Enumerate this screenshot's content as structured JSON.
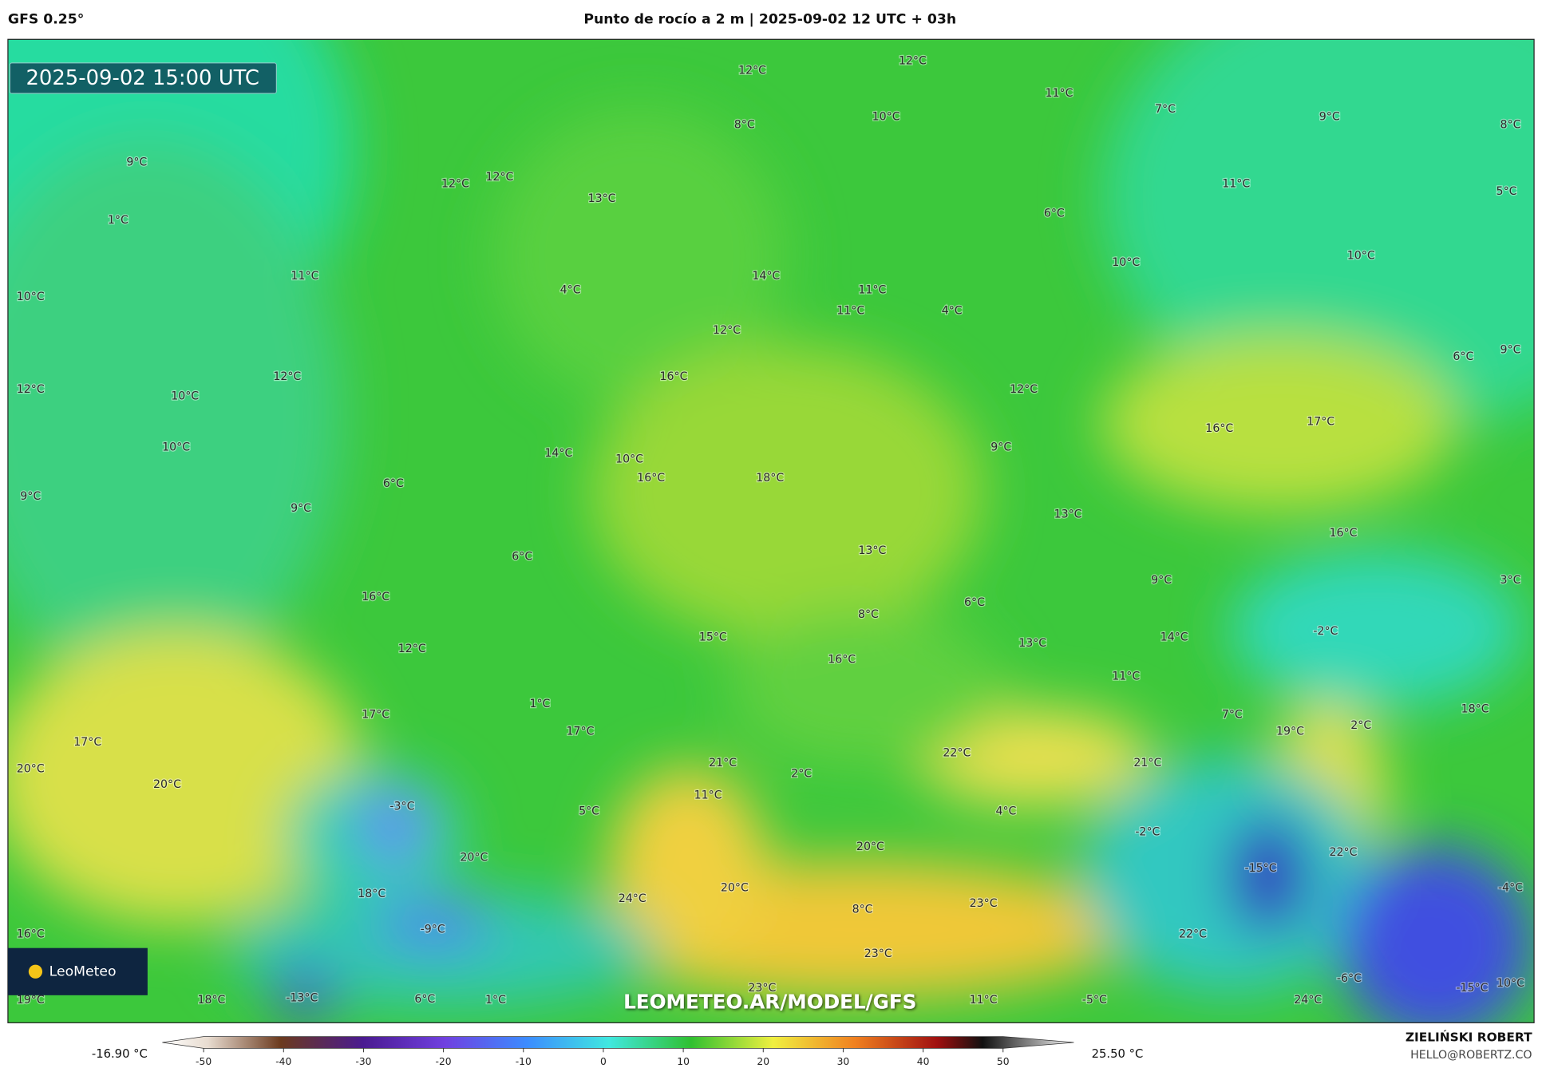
{
  "header": {
    "model": "GFS 0.25°",
    "title": "Punto de rocío a 2 m | 2025-09-02 12 UTC + 03h"
  },
  "map": {
    "timestamp": "2025-09-02 15:00 UTC",
    "watermark": "LEOMETEO.AR/MODEL/GFS",
    "logo": "LeoMeteo",
    "labels": [
      "12°C",
      "12°C",
      "11°C",
      "7°C",
      "9°C",
      "8°C",
      "8°C",
      "10°C",
      "9°C",
      "12°C",
      "12°C",
      "13°C",
      "1°C",
      "11°C",
      "5°C",
      "6°C",
      "10°C",
      "10°C",
      "11°C",
      "4°C",
      "14°C",
      "11°C",
      "11°C",
      "4°C",
      "10°C",
      "12°C",
      "6°C",
      "9°C",
      "12°C",
      "16°C",
      "12°C",
      "10°C",
      "12°C",
      "16°C",
      "17°C",
      "10°C",
      "14°C",
      "10°C",
      "9°C",
      "6°C",
      "16°C",
      "18°C",
      "9°C",
      "9°C",
      "13°C",
      "6°C",
      "13°C",
      "16°C",
      "9°C",
      "3°C",
      "16°C",
      "6°C",
      "8°C",
      "-2°C",
      "12°C",
      "15°C",
      "14°C",
      "13°C",
      "16°C",
      "11°C",
      "1°C",
      "17°C",
      "7°C",
      "18°C",
      "19°C",
      "2°C",
      "17°C",
      "17°C",
      "22°C",
      "20°C",
      "21°C",
      "21°C",
      "20°C",
      "2°C",
      "11°C",
      "-3°C",
      "5°C",
      "4°C",
      "-2°C",
      "20°C",
      "20°C",
      "22°C",
      "-15°C",
      "18°C",
      "20°C",
      "24°C",
      "23°C",
      "8°C",
      "-4°C",
      "-9°C",
      "16°C",
      "22°C",
      "23°C",
      "-6°C",
      "-15°C",
      "10°C",
      "23°C",
      "19°C",
      "18°C",
      "-13°C",
      "6°C",
      "1°C",
      "11°C",
      "-5°C",
      "24°C"
    ]
  },
  "colorbar": {
    "min_label": "-16.90 °C",
    "max_label": "25.50 °C",
    "ticks": [
      -50,
      -40,
      -30,
      -20,
      -10,
      0,
      10,
      20,
      30,
      40,
      50
    ]
  },
  "footer": {
    "author": "ZIELIŃSKI ROBERT",
    "email": "HELLO@ROBERTZ.CO"
  }
}
